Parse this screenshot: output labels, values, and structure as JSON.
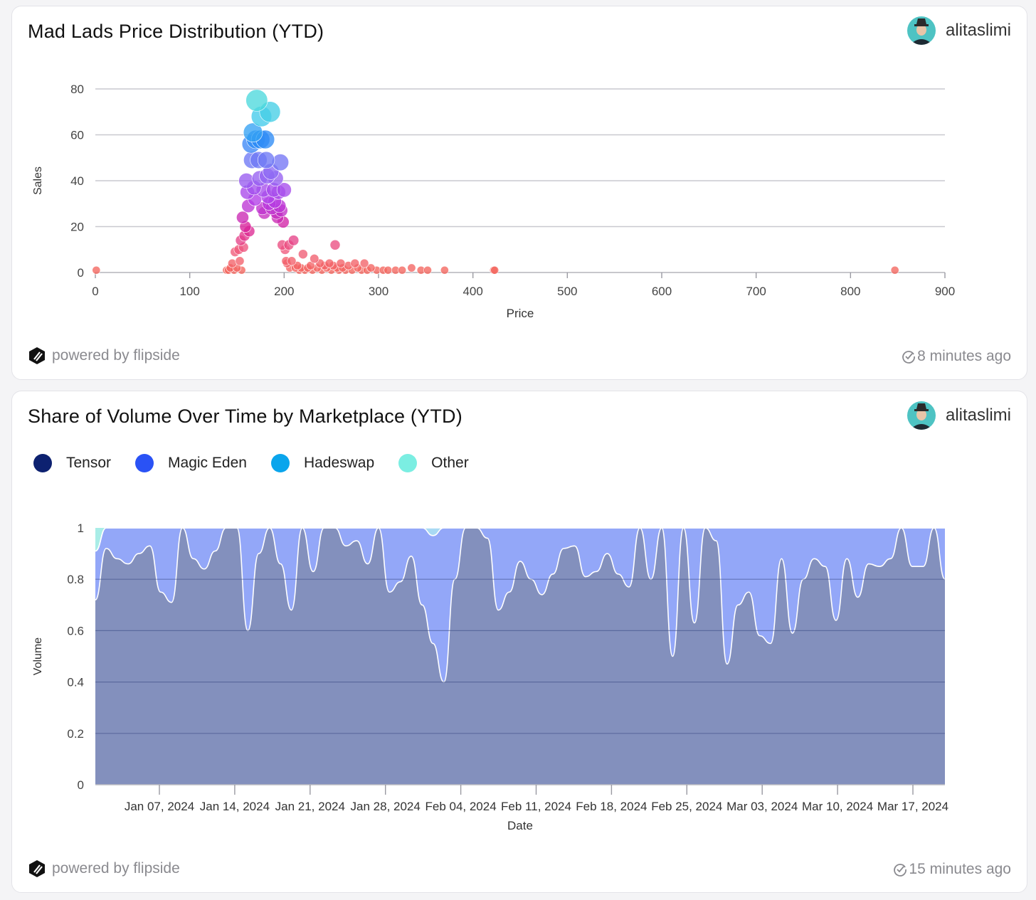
{
  "colors": {
    "tensor": "#0d2170",
    "magic_eden": "#2a52f5",
    "hadeswap": "#0aa5ec",
    "other": "#7beee2",
    "tensor_area": "#8390bd",
    "magic_eden_area": "#93a7f8",
    "hadeswap_area": "#a8d9f3",
    "other_area": "#a9ede7"
  },
  "cards": [
    {
      "title": "Mad Lads Price Distribution (YTD)",
      "author": "alitaslimi",
      "powered_by": "powered by flipside",
      "updated": "8 minutes ago"
    },
    {
      "title": "Share of Volume Over Time by Marketplace (YTD)",
      "author": "alitaslimi",
      "powered_by": "powered by flipside",
      "updated": "15 minutes ago"
    }
  ],
  "chart_data": [
    {
      "type": "scatter",
      "xlabel": "Price",
      "ylabel": "Sales",
      "xlim": [
        0,
        900
      ],
      "ylim": [
        0,
        80
      ],
      "xticks": [
        0,
        100,
        200,
        300,
        400,
        500,
        600,
        700,
        800,
        900
      ],
      "yticks": [
        0,
        20,
        40,
        60,
        80
      ],
      "grid": true,
      "points": [
        [
          1,
          1
        ],
        [
          139,
          1
        ],
        [
          141,
          1
        ],
        [
          143,
          2
        ],
        [
          145,
          4
        ],
        [
          147,
          1
        ],
        [
          148,
          9
        ],
        [
          150,
          2
        ],
        [
          152,
          10
        ],
        [
          153,
          5
        ],
        [
          154,
          14
        ],
        [
          155,
          1
        ],
        [
          156,
          24
        ],
        [
          157,
          11
        ],
        [
          158,
          16
        ],
        [
          159,
          20
        ],
        [
          160,
          40
        ],
        [
          161,
          35
        ],
        [
          162,
          29
        ],
        [
          163,
          18
        ],
        [
          165,
          56
        ],
        [
          166,
          49
        ],
        [
          167,
          61
        ],
        [
          168,
          37
        ],
        [
          169,
          32
        ],
        [
          170,
          58
        ],
        [
          171,
          75
        ],
        [
          173,
          49
        ],
        [
          174,
          41
        ],
        [
          175,
          58
        ],
        [
          176,
          68
        ],
        [
          177,
          28
        ],
        [
          178,
          36
        ],
        [
          179,
          26
        ],
        [
          180,
          58
        ],
        [
          181,
          49
        ],
        [
          182,
          42
        ],
        [
          183,
          33
        ],
        [
          184,
          30
        ],
        [
          185,
          70
        ],
        [
          186,
          44
        ],
        [
          187,
          28
        ],
        [
          189,
          36
        ],
        [
          190,
          31
        ],
        [
          191,
          41
        ],
        [
          192,
          26
        ],
        [
          193,
          24
        ],
        [
          194,
          35
        ],
        [
          195,
          29
        ],
        [
          196,
          48
        ],
        [
          197,
          27
        ],
        [
          198,
          12
        ],
        [
          199,
          22
        ],
        [
          200,
          36
        ],
        [
          201,
          10
        ],
        [
          202,
          5
        ],
        [
          203,
          4
        ],
        [
          205,
          12
        ],
        [
          206,
          2
        ],
        [
          208,
          5
        ],
        [
          210,
          14
        ],
        [
          212,
          2
        ],
        [
          214,
          3
        ],
        [
          216,
          1
        ],
        [
          218,
          2
        ],
        [
          220,
          8
        ],
        [
          222,
          1
        ],
        [
          225,
          2
        ],
        [
          228,
          3
        ],
        [
          230,
          1
        ],
        [
          232,
          6
        ],
        [
          235,
          2
        ],
        [
          238,
          4
        ],
        [
          240,
          1
        ],
        [
          243,
          3
        ],
        [
          245,
          2
        ],
        [
          248,
          4
        ],
        [
          250,
          1
        ],
        [
          252,
          3
        ],
        [
          254,
          12
        ],
        [
          256,
          2
        ],
        [
          258,
          1
        ],
        [
          260,
          4
        ],
        [
          262,
          2
        ],
        [
          265,
          1
        ],
        [
          268,
          3
        ],
        [
          272,
          1
        ],
        [
          275,
          4
        ],
        [
          278,
          2
        ],
        [
          282,
          1
        ],
        [
          285,
          4
        ],
        [
          288,
          1
        ],
        [
          292,
          2
        ],
        [
          298,
          1
        ],
        [
          305,
          1
        ],
        [
          310,
          1
        ],
        [
          318,
          1
        ],
        [
          325,
          1
        ],
        [
          335,
          2
        ],
        [
          345,
          1
        ],
        [
          352,
          1
        ],
        [
          370,
          1
        ],
        [
          422,
          1
        ],
        [
          423,
          1
        ],
        [
          847,
          1
        ]
      ]
    },
    {
      "type": "area",
      "stacked": true,
      "normalized": true,
      "xlabel": "Date",
      "ylabel": "Volume",
      "ylim": [
        0,
        1
      ],
      "yticks": [
        "0",
        "0.2",
        "0.4",
        "0.6",
        "0.8",
        "1"
      ],
      "grid": true,
      "legend_position": "top-left",
      "x_ticks": [
        "Jan 07, 2024",
        "Jan 14, 2024",
        "Jan 21, 2024",
        "Jan 28, 2024",
        "Feb 04, 2024",
        "Feb 11, 2024",
        "Feb 18, 2024",
        "Feb 25, 2024",
        "Mar 03, 2024",
        "Mar 10, 2024",
        "Mar 17, 2024"
      ],
      "series": [
        {
          "name": "Tensor",
          "values": [
            0.72,
            0.92,
            0.88,
            0.86,
            0.9,
            0.93,
            0.75,
            0.71,
            1.0,
            0.88,
            0.84,
            0.91,
            1.0,
            1.0,
            0.6,
            0.9,
            1.0,
            0.86,
            0.68,
            1.0,
            0.83,
            1.0,
            1.0,
            0.93,
            0.95,
            0.86,
            1.0,
            0.75,
            0.79,
            0.89,
            0.7,
            0.55,
            0.4,
            0.8,
            1.0,
            1.0,
            0.96,
            0.68,
            0.75,
            0.87,
            0.8,
            0.74,
            0.82,
            0.92,
            0.93,
            0.81,
            0.83,
            0.9,
            0.82,
            0.77,
            1.0,
            0.8,
            1.0,
            0.5,
            1.0,
            0.63,
            1.0,
            0.95,
            0.47,
            0.7,
            0.75,
            0.58,
            0.55,
            0.88,
            0.59,
            0.8,
            0.88,
            0.85,
            0.64,
            0.88,
            0.73,
            0.86,
            0.85,
            0.88,
            1.0,
            0.85,
            0.85,
            1.0,
            0.8
          ]
        },
        {
          "name": "Magic Eden",
          "values": [
            0.19,
            0.08,
            0.12,
            0.14,
            0.1,
            0.07,
            0.25,
            0.29,
            0.0,
            0.12,
            0.16,
            0.09,
            0.0,
            0.0,
            0.4,
            0.1,
            0.0,
            0.14,
            0.32,
            0.0,
            0.17,
            0.0,
            0.0,
            0.07,
            0.05,
            0.14,
            0.0,
            0.25,
            0.21,
            0.11,
            0.3,
            0.42,
            0.6,
            0.2,
            0.0,
            0.0,
            0.04,
            0.32,
            0.25,
            0.13,
            0.2,
            0.26,
            0.18,
            0.08,
            0.07,
            0.19,
            0.17,
            0.1,
            0.18,
            0.23,
            0.0,
            0.2,
            0.0,
            0.5,
            0.0,
            0.37,
            0.0,
            0.05,
            0.53,
            0.3,
            0.25,
            0.42,
            0.45,
            0.12,
            0.41,
            0.2,
            0.12,
            0.15,
            0.36,
            0.12,
            0.27,
            0.14,
            0.15,
            0.12,
            0.0,
            0.15,
            0.15,
            0.0,
            0.2
          ]
        },
        {
          "name": "Hadeswap",
          "values": [
            0,
            0,
            0,
            0,
            0,
            0,
            0,
            0,
            0,
            0,
            0,
            0,
            0,
            0,
            0,
            0,
            0,
            0,
            0,
            0,
            0,
            0,
            0,
            0,
            0,
            0,
            0,
            0,
            0,
            0,
            0,
            0.03,
            0,
            0,
            0,
            0,
            0,
            0,
            0,
            0,
            0,
            0,
            0,
            0,
            0,
            0,
            0,
            0,
            0,
            0,
            0,
            0,
            0,
            0,
            0,
            0,
            0,
            0,
            0,
            0,
            0,
            0,
            0,
            0,
            0,
            0,
            0,
            0,
            0,
            0,
            0,
            0,
            0,
            0,
            0,
            0,
            0,
            0,
            0
          ]
        },
        {
          "name": "Other",
          "values": [
            0.09,
            0.0,
            0.0,
            0.0,
            0.0,
            0.0,
            0,
            0,
            0,
            0,
            0,
            0,
            0,
            0,
            0,
            0,
            0,
            0,
            0,
            0,
            0,
            0,
            0,
            0,
            0,
            0,
            0,
            0,
            0,
            0,
            0,
            0.03,
            0,
            0,
            0,
            0,
            0,
            0,
            0,
            0,
            0,
            0,
            0,
            0,
            0,
            0,
            0,
            0,
            0,
            0,
            0,
            0,
            0,
            0,
            0,
            0,
            0,
            0,
            0,
            0,
            0,
            0,
            0,
            0,
            0,
            0,
            0,
            0,
            0,
            0,
            0,
            0,
            0,
            0,
            0,
            0,
            0,
            0,
            0
          ]
        }
      ]
    }
  ]
}
